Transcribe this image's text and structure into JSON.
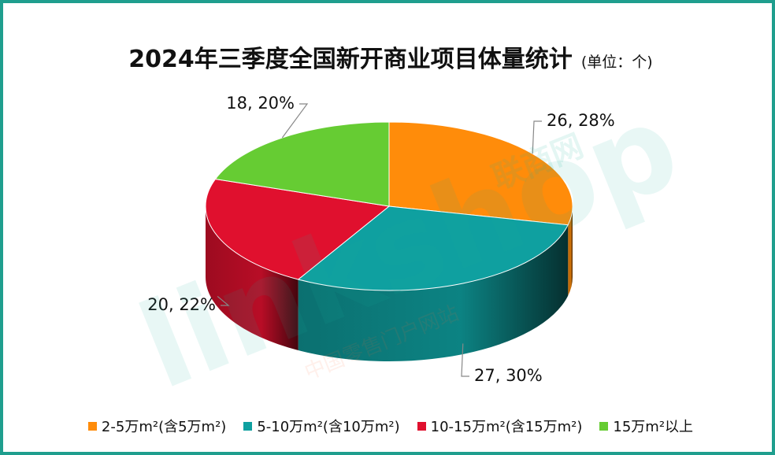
{
  "chart_data": {
    "type": "pie",
    "title": "2024年三季度全国新开商业项目体量统计",
    "unit": "(单位：个)",
    "categories": [
      "2-5万m²(含5万m²)",
      "5-10万m²(含10万m²)",
      "10-15万m²(含15万m²)",
      "15万m²以上"
    ],
    "values": [
      26,
      27,
      20,
      18
    ],
    "percentages": [
      "28%",
      "30%",
      "22%",
      "20%"
    ],
    "data_labels": [
      "26, 28%",
      "27, 30%",
      "20, 22%",
      "18, 20%"
    ],
    "colors": [
      "#FF8C0A",
      "#0FA0A0",
      "#E0102E",
      "#66CC33"
    ],
    "legend_position": "bottom",
    "style": "3d"
  },
  "watermark": {
    "text": "linkshop",
    "cn": "联商网",
    "sub": "中国零售门户网站"
  }
}
